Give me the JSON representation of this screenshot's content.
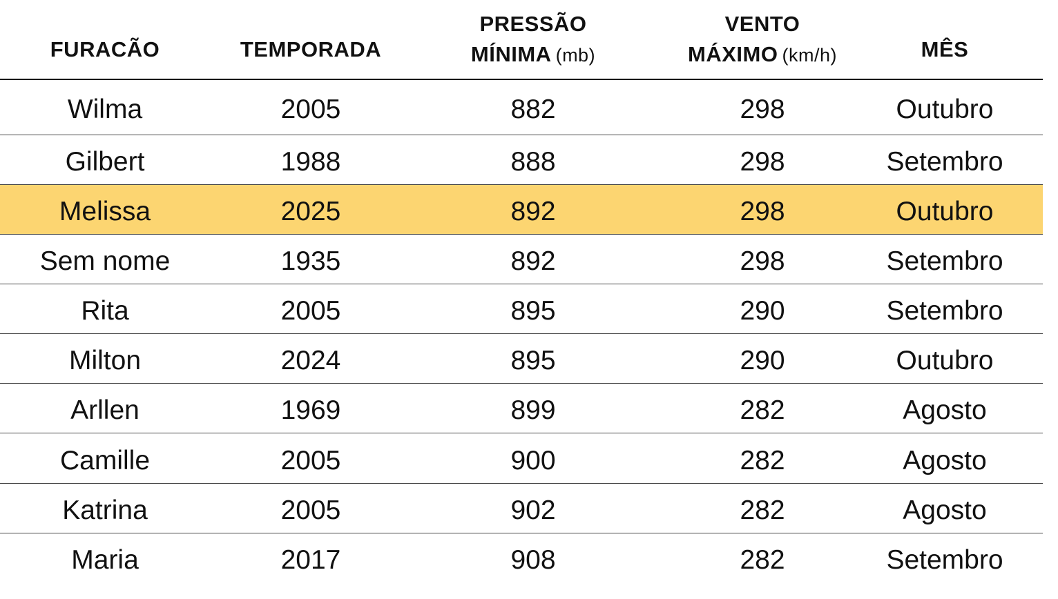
{
  "table": {
    "header": [
      {
        "lines": [
          [
            "FURACÃO"
          ]
        ]
      },
      {
        "lines": [
          [
            "TEMPORADA"
          ]
        ]
      },
      {
        "lines": [
          [
            "PRESSÃO"
          ],
          [
            "MÍNIMA",
            "(mb)"
          ]
        ]
      },
      {
        "lines": [
          [
            "VENTO"
          ],
          [
            "MÁXIMO",
            "(km/h)"
          ]
        ]
      },
      {
        "lines": [
          [
            "MÊS"
          ]
        ]
      }
    ],
    "rows": [
      [
        "Wilma",
        "2005",
        "882",
        "298",
        "Outubro"
      ],
      [
        "Gilbert",
        "1988",
        "888",
        "298",
        "Setembro"
      ],
      [
        "Melissa",
        "2025",
        "892",
        "298",
        "Outubro"
      ],
      [
        "Sem nome",
        "1935",
        "892",
        "298",
        "Setembro"
      ],
      [
        "Rita",
        "2005",
        "895",
        "290",
        "Setembro"
      ],
      [
        "Milton",
        "2024",
        "895",
        "290",
        "Outubro"
      ],
      [
        "Arllen",
        "1969",
        "899",
        "282",
        "Agosto"
      ],
      [
        "Camille",
        "2005",
        "900",
        "282",
        "Agosto"
      ],
      [
        "Katrina",
        "2005",
        "902",
        "282",
        "Agosto"
      ],
      [
        "Maria",
        "2017",
        "908",
        "282",
        "Setembro"
      ]
    ],
    "highlight": {
      "row": 2,
      "color": "#fcd571"
    }
  }
}
